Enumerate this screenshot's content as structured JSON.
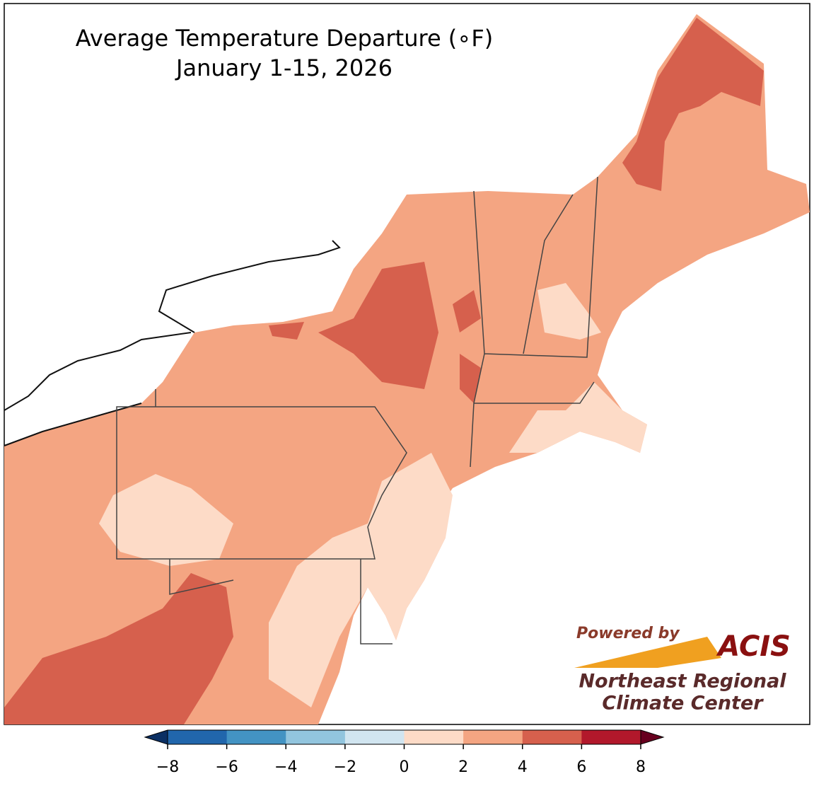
{
  "header": {
    "title": "Average Temperature Departure (∘F)",
    "subtitle": "January 1-15, 2026"
  },
  "colorbar": {
    "range": [
      -8,
      8
    ],
    "ticks": [
      {
        "value": -8,
        "label": "−8"
      },
      {
        "value": -6,
        "label": "−6"
      },
      {
        "value": -4,
        "label": "−4"
      },
      {
        "value": -2,
        "label": "−2"
      },
      0,
      2,
      4,
      6,
      8
    ],
    "colors": [
      "#2166ac",
      "#4393c3",
      "#92c5de",
      "#d1e5f0",
      "#fddbc7",
      "#f4a582",
      "#d6604d",
      "#b2182b"
    ],
    "extend_colors": [
      "#0b2f63",
      "#67001f"
    ]
  },
  "logo": {
    "powered": "Powered by",
    "name": "ACIS",
    "line1": "Northeast Regional",
    "line2": "Climate Center"
  }
}
